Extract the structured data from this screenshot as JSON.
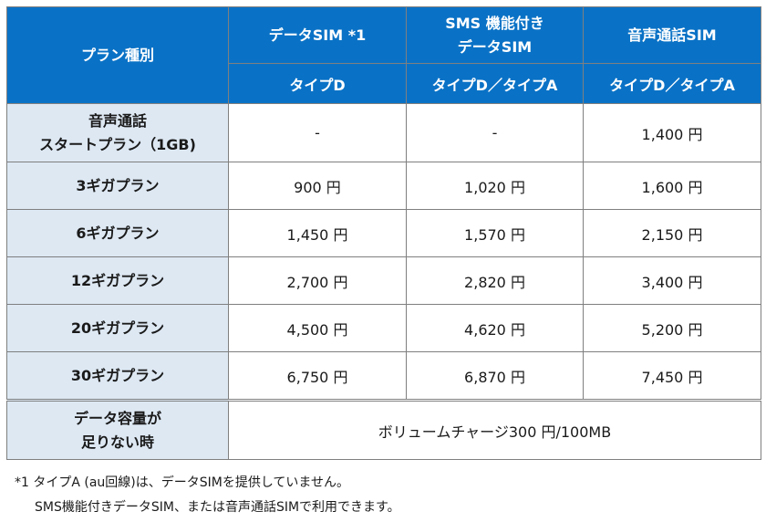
{
  "header": {
    "plan_type": "プラン種別",
    "col1_line1": "データSIM *1",
    "col2_line1": "SMS 機能付き",
    "col2_line2": "データSIM",
    "col3_line1": "音声通話SIM",
    "col1_sub": "タイプD",
    "col2_sub": "タイプD／タイプA",
    "col3_sub": "タイプD／タイプA"
  },
  "rows": [
    {
      "name_line1": "音声通話",
      "name_line2": "スタートプラン（1GB)",
      "data": "-",
      "sms": "-",
      "voice": "1,400 円"
    },
    {
      "name": "3ギガプラン",
      "data": "900 円",
      "sms": "1,020 円",
      "voice": "1,600 円"
    },
    {
      "name": "6ギガプラン",
      "data": "1,450 円",
      "sms": "1,570 円",
      "voice": "2,150 円"
    },
    {
      "name": "12ギガプラン",
      "data": "2,700 円",
      "sms": "2,820 円",
      "voice": "3,400 円"
    },
    {
      "name": "20ギガプラン",
      "data": "4,500 円",
      "sms": "4,620 円",
      "voice": "5,200 円"
    },
    {
      "name": "30ギガプラン",
      "data": "6,750 円",
      "sms": "6,870 円",
      "voice": "7,450 円"
    }
  ],
  "shortage": {
    "label_line1": "データ容量が",
    "label_line2": "足りない時",
    "value": "ボリュームチャージ300 円/100MB"
  },
  "footnotes": {
    "line1": "*1 タイプA (au回線)は、データSIMを提供していません。",
    "line2": "SMS機能付きデータSIM、または音声通話SIMで利用できます。"
  },
  "colors": {
    "header_bg": "#0a72c6",
    "row_header_bg": "#dde8f3",
    "border": "#7f7f7f"
  }
}
